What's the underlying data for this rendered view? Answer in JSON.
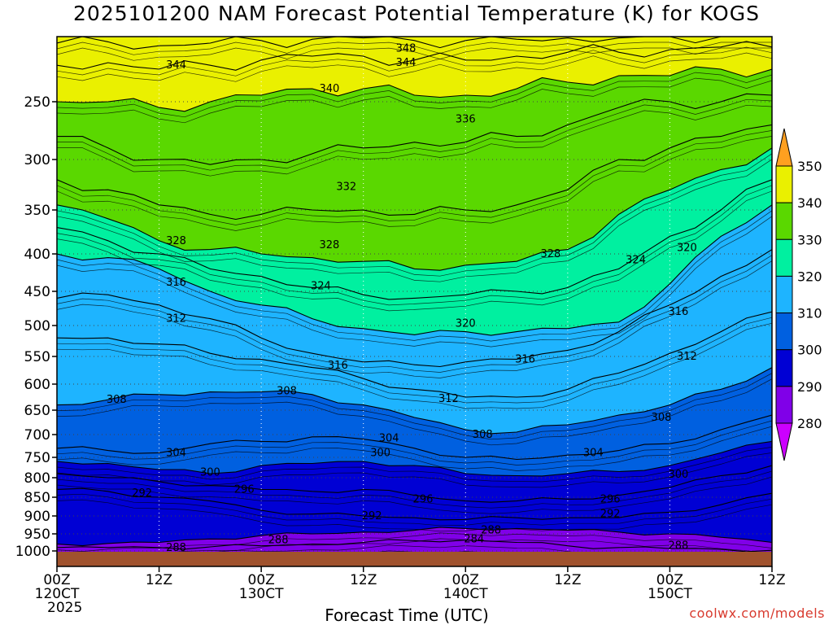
{
  "chart_data": {
    "type": "heatmap",
    "title": "2025101200 NAM Forecast Potential Temperature (K) for KOGS",
    "xlabel": "Forecast Time (UTC)",
    "ylabel": "",
    "y_axis_reversed": true,
    "y_ticks": [
      250,
      300,
      350,
      400,
      450,
      500,
      550,
      600,
      650,
      700,
      750,
      800,
      850,
      900,
      950,
      1000
    ],
    "x_ticks": [
      {
        "hour": 0,
        "line1": "00Z",
        "line2": "120CT",
        "line3": "2025"
      },
      {
        "hour": 12,
        "line1": "12Z",
        "line2": "",
        "line3": ""
      },
      {
        "hour": 24,
        "line1": "00Z",
        "line2": "130CT",
        "line3": ""
      },
      {
        "hour": 36,
        "line1": "12Z",
        "line2": "",
        "line3": ""
      },
      {
        "hour": 48,
        "line1": "00Z",
        "line2": "140CT",
        "line3": ""
      },
      {
        "hour": 60,
        "line1": "12Z",
        "line2": "",
        "line3": ""
      },
      {
        "hour": 72,
        "line1": "00Z",
        "line2": "150CT",
        "line3": ""
      },
      {
        "hour": 84,
        "line1": "12Z",
        "line2": "",
        "line3": ""
      }
    ],
    "x_range": [
      0,
      84
    ],
    "y_range": [
      1000,
      200
    ],
    "grid": true,
    "colorbar": {
      "levels": [
        280,
        290,
        300,
        310,
        320,
        330,
        340,
        350
      ],
      "colors": [
        "#cc00ff",
        "#8000e8",
        "#0000d4",
        "#0060e0",
        "#1eb4ff",
        "#00f0a0",
        "#5ad800",
        "#eaf000",
        "#ffa020"
      ]
    },
    "isotherm_profiles": {
      "hours": [
        0,
        6,
        12,
        18,
        24,
        30,
        36,
        42,
        48,
        54,
        60,
        66,
        72,
        78,
        84
      ],
      "series": [
        {
          "theta": 284,
          "pressures": [
            990,
            990,
            990,
            988,
            985,
            980,
            975,
            970,
            968,
            975,
            985,
            990,
            993,
            995,
            998
          ]
        },
        {
          "theta": 288,
          "pressures": [
            980,
            978,
            975,
            965,
            955,
            950,
            945,
            940,
            935,
            935,
            940,
            945,
            950,
            960,
            975
          ]
        },
        {
          "theta": 292,
          "pressures": [
            830,
            835,
            850,
            860,
            885,
            895,
            900,
            905,
            910,
            905,
            905,
            905,
            890,
            870,
            840
          ]
        },
        {
          "theta": 296,
          "pressures": [
            790,
            800,
            810,
            820,
            830,
            835,
            830,
            845,
            860,
            860,
            855,
            845,
            825,
            795,
            770
          ]
        },
        {
          "theta": 300,
          "pressures": [
            760,
            765,
            780,
            790,
            770,
            765,
            760,
            770,
            790,
            795,
            790,
            785,
            770,
            740,
            715
          ]
        },
        {
          "theta": 304,
          "pressures": [
            730,
            735,
            740,
            720,
            715,
            705,
            710,
            730,
            750,
            755,
            745,
            735,
            720,
            690,
            660
          ]
        },
        {
          "theta": 308,
          "pressures": [
            640,
            630,
            620,
            615,
            615,
            620,
            640,
            665,
            690,
            695,
            680,
            660,
            640,
            610,
            570
          ]
        },
        {
          "theta": 312,
          "pressures": [
            520,
            520,
            530,
            545,
            555,
            570,
            590,
            610,
            625,
            625,
            610,
            580,
            545,
            510,
            480
          ]
        },
        {
          "theta": 316,
          "pressures": [
            460,
            455,
            470,
            490,
            520,
            545,
            560,
            565,
            560,
            555,
            540,
            510,
            470,
            430,
            395
          ]
        },
        {
          "theta": 320,
          "pressures": [
            400,
            405,
            420,
            450,
            470,
            490,
            505,
            515,
            510,
            510,
            505,
            495,
            440,
            380,
            345
          ]
        },
        {
          "theta": 324,
          "pressures": [
            370,
            385,
            400,
            420,
            430,
            445,
            455,
            460,
            455,
            450,
            445,
            420,
            380,
            350,
            320
          ]
        },
        {
          "theta": 328,
          "pressures": [
            345,
            360,
            385,
            395,
            400,
            405,
            410,
            420,
            415,
            410,
            395,
            355,
            330,
            310,
            290
          ]
        },
        {
          "theta": 332,
          "pressures": [
            320,
            330,
            345,
            355,
            355,
            350,
            350,
            355,
            350,
            345,
            330,
            300,
            290,
            280,
            270
          ]
        },
        {
          "theta": 336,
          "pressures": [
            280,
            290,
            300,
            305,
            300,
            295,
            290,
            285,
            285,
            280,
            270,
            255,
            250,
            250,
            245
          ]
        },
        {
          "theta": 340,
          "pressures": [
            250,
            250,
            255,
            250,
            245,
            240,
            240,
            245,
            245,
            240,
            235,
            230,
            230,
            225,
            225
          ]
        },
        {
          "theta": 344,
          "pressures": [
            222,
            220,
            225,
            222,
            218,
            215,
            215,
            218,
            218,
            215,
            212,
            212,
            210,
            208,
            208
          ]
        },
        {
          "theta": 348,
          "pressures": [
            205,
            204,
            207,
            205,
            203,
            202,
            201,
            203,
            203,
            202,
            201,
            201,
            200,
            200,
            200
          ]
        }
      ]
    },
    "contour_labels": [
      {
        "value": 348,
        "hour": 41,
        "pressure": 209
      },
      {
        "value": 344,
        "hour": 14,
        "pressure": 222
      },
      {
        "value": 344,
        "hour": 41,
        "pressure": 220
      },
      {
        "value": 340,
        "hour": 32,
        "pressure": 240
      },
      {
        "value": 336,
        "hour": 48,
        "pressure": 265
      },
      {
        "value": 332,
        "hour": 34,
        "pressure": 327
      },
      {
        "value": 328,
        "hour": 14,
        "pressure": 385
      },
      {
        "value": 328,
        "hour": 32,
        "pressure": 390
      },
      {
        "value": 328,
        "hour": 58,
        "pressure": 400
      },
      {
        "value": 324,
        "hour": 31,
        "pressure": 443
      },
      {
        "value": 324,
        "hour": 68,
        "pressure": 408
      },
      {
        "value": 320,
        "hour": 48,
        "pressure": 497
      },
      {
        "value": 320,
        "hour": 74,
        "pressure": 393
      },
      {
        "value": 316,
        "hour": 14,
        "pressure": 438
      },
      {
        "value": 316,
        "hour": 33,
        "pressure": 566
      },
      {
        "value": 316,
        "hour": 55,
        "pressure": 555
      },
      {
        "value": 316,
        "hour": 73,
        "pressure": 480
      },
      {
        "value": 312,
        "hour": 14,
        "pressure": 490
      },
      {
        "value": 312,
        "hour": 46,
        "pressure": 628
      },
      {
        "value": 312,
        "hour": 74,
        "pressure": 550
      },
      {
        "value": 308,
        "hour": 7,
        "pressure": 630
      },
      {
        "value": 308,
        "hour": 27,
        "pressure": 613
      },
      {
        "value": 308,
        "hour": 50,
        "pressure": 700
      },
      {
        "value": 308,
        "hour": 71,
        "pressure": 665
      },
      {
        "value": 304,
        "hour": 14,
        "pressure": 740
      },
      {
        "value": 304,
        "hour": 39,
        "pressure": 708
      },
      {
        "value": 304,
        "hour": 63,
        "pressure": 740
      },
      {
        "value": 300,
        "hour": 18,
        "pressure": 787
      },
      {
        "value": 300,
        "hour": 38,
        "pressure": 740
      },
      {
        "value": 300,
        "hour": 73,
        "pressure": 792
      },
      {
        "value": 296,
        "hour": 22,
        "pressure": 830
      },
      {
        "value": 296,
        "hour": 43,
        "pressure": 855
      },
      {
        "value": 296,
        "hour": 65,
        "pressure": 855
      },
      {
        "value": 292,
        "hour": 10,
        "pressure": 840
      },
      {
        "value": 292,
        "hour": 37,
        "pressure": 900
      },
      {
        "value": 292,
        "hour": 65,
        "pressure": 895
      },
      {
        "value": 288,
        "hour": 51,
        "pressure": 940
      },
      {
        "value": 288,
        "hour": 26,
        "pressure": 968
      },
      {
        "value": 288,
        "hour": 14,
        "pressure": 990
      },
      {
        "value": 288,
        "hour": 73,
        "pressure": 985
      },
      {
        "value": 284,
        "hour": 49,
        "pressure": 965
      }
    ]
  },
  "watermark": "coolwx.com/models"
}
